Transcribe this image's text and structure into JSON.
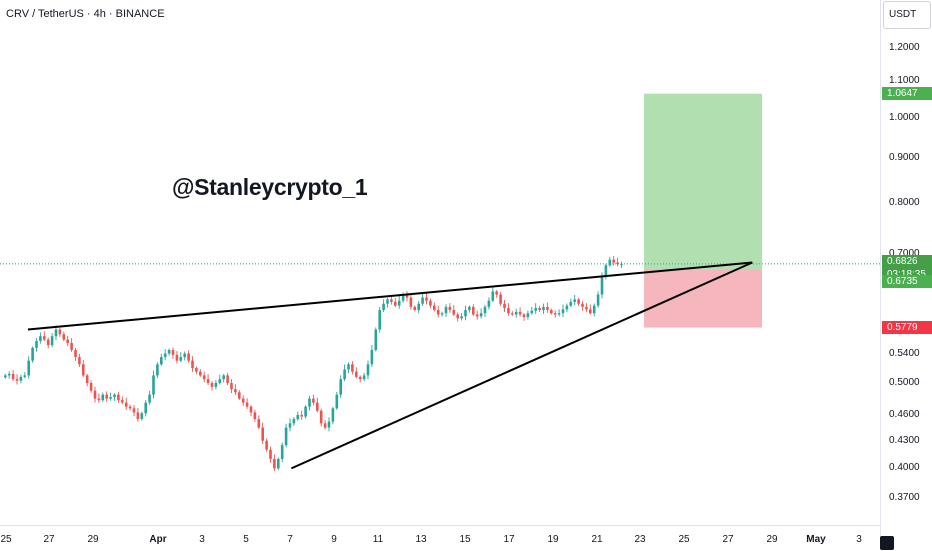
{
  "header": {
    "symbol_line": "CRV / TetherUS · 4h · BINANCE"
  },
  "watermark": "@Stanleycrypto_1",
  "price_scale": {
    "currency": "USDT",
    "ticks": [
      "1.2000",
      "1.1000",
      "1.0000",
      "0.9000",
      "0.8000",
      "0.7000",
      "0.5400",
      "0.5000",
      "0.4600",
      "0.4300",
      "0.4000",
      "0.3700"
    ],
    "tags": {
      "target": "1.0647",
      "current": "0.6826",
      "countdown": "03:18:35",
      "entry": "0.6735",
      "stop": "0.5779"
    }
  },
  "time_scale": {
    "labels": [
      "25",
      "27",
      "29",
      "Apr",
      "3",
      "5",
      "7",
      "9",
      "11",
      "13",
      "15",
      "17",
      "19",
      "21",
      "23",
      "25",
      "27",
      "29",
      "May",
      "3"
    ]
  },
  "colors": {
    "up": "#26a69a",
    "down": "#ef5350",
    "profit_zone": "#b2dfb0",
    "loss_zone": "#f5b7bd",
    "target_tag": "#4caf50",
    "current_tag": "#43a047",
    "stop_tag": "#f23645"
  },
  "chart_data": {
    "type": "candlestick",
    "symbol": "CRV / TetherUS",
    "interval": "4h",
    "exchange": "BINANCE",
    "price_axis": {
      "scale": "log",
      "range": [
        0.345,
        1.36
      ]
    },
    "date_axis": [
      "25",
      "27",
      "29",
      "Apr",
      "3",
      "5",
      "7",
      "9",
      "11",
      "13",
      "15",
      "17",
      "19",
      "21",
      "23",
      "25",
      "27",
      "29",
      "May",
      "3"
    ],
    "position": {
      "entry": 0.6735,
      "target": 1.0647,
      "stop": 0.5779,
      "current": 0.6826
    },
    "trendlines": [
      {
        "name": "upper",
        "from": {
          "date": "Mar 26",
          "price": 0.575
        },
        "to": {
          "date": "Apr 28",
          "price": 0.685
        }
      },
      {
        "name": "lower",
        "from": {
          "date": "Apr 7",
          "price": 0.4
        },
        "to": {
          "date": "Apr 28",
          "price": 0.685
        }
      }
    ],
    "closes": [
      0.51,
      0.512,
      0.505,
      0.503,
      0.508,
      0.51,
      0.53,
      0.548,
      0.558,
      0.565,
      0.56,
      0.552,
      0.565,
      0.575,
      0.568,
      0.56,
      0.555,
      0.545,
      0.535,
      0.525,
      0.51,
      0.5,
      0.49,
      0.48,
      0.478,
      0.485,
      0.48,
      0.482,
      0.485,
      0.478,
      0.475,
      0.47,
      0.468,
      0.463,
      0.455,
      0.462,
      0.475,
      0.485,
      0.51,
      0.525,
      0.535,
      0.54,
      0.545,
      0.538,
      0.53,
      0.535,
      0.54,
      0.53,
      0.52,
      0.515,
      0.51,
      0.505,
      0.5,
      0.495,
      0.5,
      0.505,
      0.51,
      0.5,
      0.492,
      0.488,
      0.48,
      0.475,
      0.47,
      0.463,
      0.455,
      0.445,
      0.43,
      0.42,
      0.41,
      0.4,
      0.41,
      0.425,
      0.445,
      0.45,
      0.455,
      0.46,
      0.458,
      0.47,
      0.48,
      0.475,
      0.465,
      0.45,
      0.445,
      0.452,
      0.468,
      0.485,
      0.505,
      0.518,
      0.525,
      0.515,
      0.508,
      0.505,
      0.51,
      0.525,
      0.545,
      0.575,
      0.605,
      0.615,
      0.622,
      0.618,
      0.612,
      0.62,
      0.63,
      0.625,
      0.61,
      0.605,
      0.615,
      0.625,
      0.62,
      0.612,
      0.605,
      0.598,
      0.6,
      0.61,
      0.605,
      0.598,
      0.592,
      0.595,
      0.605,
      0.61,
      0.598,
      0.595,
      0.6,
      0.61,
      0.62,
      0.635,
      0.63,
      0.615,
      0.608,
      0.6,
      0.598,
      0.602,
      0.598,
      0.594,
      0.6,
      0.604,
      0.608,
      0.605,
      0.61,
      0.605,
      0.6,
      0.598,
      0.6,
      0.606,
      0.612,
      0.618,
      0.622,
      0.615,
      0.61,
      0.606,
      0.6,
      0.612,
      0.63,
      0.66,
      0.68,
      0.69,
      0.685,
      0.682,
      0.6826
    ]
  }
}
